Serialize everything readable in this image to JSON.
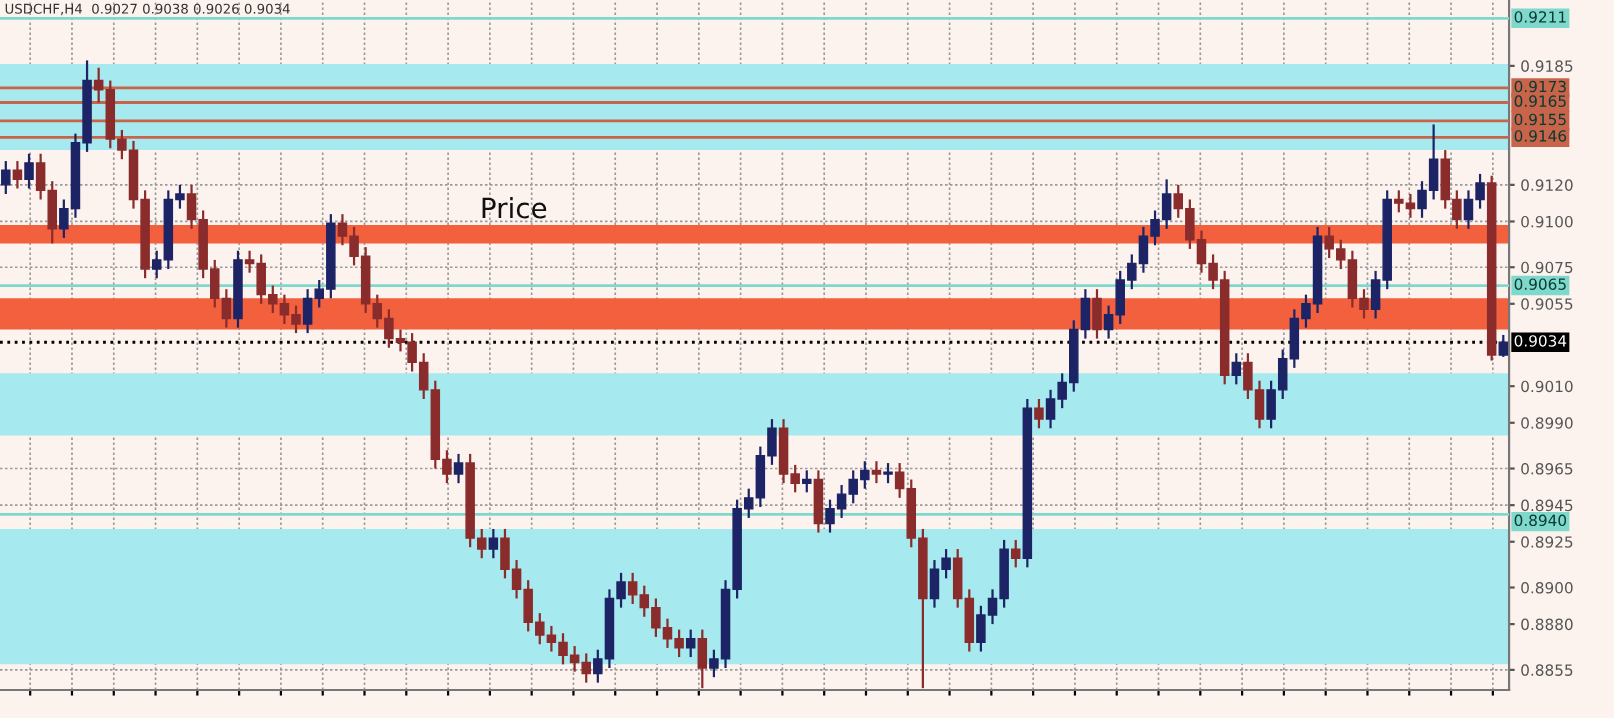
{
  "chart_data": {
    "type": "candlestick",
    "title": "USDCHF,H4  0.9027 0.9038 0.9026 0.9034",
    "annotations": [
      "Price"
    ],
    "colors": [
      "#1c2466",
      "#8a2c2c",
      "#1c2466",
      "#8a2c2c",
      "#8a2c2c",
      "#1c2466",
      "#1c2466",
      "#1c2466",
      "#8a2c2c",
      "#8a2c2c",
      "#8a2c2c",
      "#8a2c2c",
      "#8a2c2c",
      "#1c2466",
      "#1c2466",
      "#1c2466",
      "#8a2c2c",
      "#8a2c2c",
      "#8a2c2c",
      "#8a2c2c",
      "#1c2466",
      "#8a2c2c",
      "#8a2c2c",
      "#8a2c2c",
      "#8a2c2c",
      "#8a2c2c",
      "#1c2466",
      "#1c2466",
      "#1c2466",
      "#8a2c2c",
      "#8a2c2c",
      "#8a2c2c",
      "#8a2c2c",
      "#8a2c2c",
      "#8a2c2c",
      "#8a2c2c",
      "#8a2c2c",
      "#8a2c2c",
      "#8a2c2c",
      "#1c2466",
      "#8a2c2c",
      "#8a2c2c",
      "#1c2466",
      "#8a2c2c",
      "#8a2c2c",
      "#8a2c2c",
      "#8a2c2c",
      "#8a2c2c",
      "#8a2c2c",
      "#8a2c2c",
      "#8a2c2c",
      "#1c2466",
      "#1c2466",
      "#1c2466",
      "#8a2c2c",
      "#8a2c2c",
      "#8a2c2c",
      "#8a2c2c",
      "#8a2c2c",
      "#1c2466",
      "#8a2c2c",
      "#1c2466",
      "#1c2466",
      "#1c2466",
      "#1c2466",
      "#1c2466",
      "#1c2466",
      "#8a2c2c",
      "#8a2c2c",
      "#1c2466",
      "#8a2c2c",
      "#1c2466",
      "#1c2466",
      "#1c2466",
      "#1c2466",
      "#8a2c2c",
      "#1c2466",
      "#8a2c2c",
      "#8a2c2c",
      "#8a2c2c",
      "#1c2466",
      "#1c2466",
      "#8a2c2c",
      "#8a2c2c",
      "#1c2466",
      "#1c2466",
      "#1c2466",
      "#8a2c2c",
      "#1c2466",
      "#8a2c2c",
      "#1c2466",
      "#1c2466",
      "#1c2466",
      "#1c2466",
      "#8a2c2c",
      "#1c2466",
      "#1c2466",
      "#1c2466",
      "#1c2466",
      "#1c2466",
      "#1c2466",
      "#8a2c2c",
      "#8a2c2c",
      "#8a2c2c",
      "#8a2c2c",
      "#8a2c2c",
      "#1c2466",
      "#8a2c2c",
      "#8a2c2c",
      "#1c2466",
      "#1c2466",
      "#1c2466",
      "#1c2466",
      "#1c2466",
      "#8a2c2c",
      "#8a2c2c",
      "#8a2c2c",
      "#8a2c2c",
      "#1c2466",
      "#1c2466",
      "#8a2c2c",
      "#8a2c2c",
      "#1c2466",
      "#1c2466",
      "#8a2c2c",
      "#8a2c2c",
      "#1c2466",
      "#1c2466",
      "#8a2c2c",
      "#1c2466"
    ],
    "categories": [
      null,
      null,
      null,
      null,
      null,
      null,
      null,
      null,
      null,
      null,
      null,
      null,
      null,
      null,
      null,
      null,
      null,
      null,
      null,
      null,
      null,
      null,
      null,
      null,
      null,
      null,
      null,
      null,
      null,
      null,
      null,
      null,
      null,
      null,
      null,
      null,
      null,
      null,
      null,
      null,
      null,
      null,
      null,
      null,
      null,
      null,
      null,
      null,
      null,
      null,
      null,
      null,
      null,
      null,
      null,
      null,
      null,
      null,
      null,
      null,
      null,
      null,
      null,
      null,
      null,
      null,
      null,
      null,
      null,
      null,
      null,
      null,
      null,
      null,
      null,
      null,
      null,
      null,
      null,
      null,
      null,
      null,
      null,
      null,
      null,
      null,
      null,
      null,
      null,
      null,
      null,
      null,
      null,
      null,
      null,
      null,
      null,
      null,
      null,
      null,
      null,
      null,
      null,
      null,
      null,
      null,
      null,
      null,
      null,
      null,
      null,
      null,
      null,
      null,
      null,
      null,
      null,
      null,
      null,
      null,
      null,
      null,
      null,
      null,
      null,
      null,
      null,
      null,
      null,
      null
    ],
    "ohlc": [
      [
        0.912,
        0.9133,
        0.9115,
        0.9128
      ],
      [
        0.9128,
        0.9133,
        0.9118,
        0.9123
      ],
      [
        0.9123,
        0.9137,
        0.9118,
        0.9132
      ],
      [
        0.9132,
        0.9137,
        0.9112,
        0.9117
      ],
      [
        0.9117,
        0.9122,
        0.9088,
        0.9096
      ],
      [
        0.9096,
        0.9112,
        0.9091,
        0.9107
      ],
      [
        0.9107,
        0.9148,
        0.9102,
        0.9143
      ],
      [
        0.9143,
        0.9188,
        0.9138,
        0.9177
      ],
      [
        0.9177,
        0.9184,
        0.9165,
        0.9172
      ],
      [
        0.9172,
        0.9177,
        0.914,
        0.9145
      ],
      [
        0.9145,
        0.915,
        0.9134,
        0.9139
      ],
      [
        0.9139,
        0.9144,
        0.9107,
        0.9112
      ],
      [
        0.9112,
        0.9117,
        0.9069,
        0.9074
      ],
      [
        0.9074,
        0.9084,
        0.9069,
        0.9079
      ],
      [
        0.9079,
        0.9117,
        0.9074,
        0.9112
      ],
      [
        0.9112,
        0.912,
        0.9107,
        0.9115
      ],
      [
        0.9115,
        0.912,
        0.9096,
        0.9101
      ],
      [
        0.9101,
        0.9106,
        0.9069,
        0.9074
      ],
      [
        0.9074,
        0.9079,
        0.9053,
        0.9058
      ],
      [
        0.9058,
        0.9063,
        0.9042,
        0.9047
      ],
      [
        0.9047,
        0.9084,
        0.9042,
        0.9079
      ],
      [
        0.9079,
        0.9084,
        0.9072,
        0.9077
      ],
      [
        0.9077,
        0.9082,
        0.9055,
        0.906
      ],
      [
        0.906,
        0.9065,
        0.905,
        0.9055
      ],
      [
        0.9055,
        0.906,
        0.9044,
        0.9049
      ],
      [
        0.9049,
        0.9054,
        0.9039,
        0.9044
      ],
      [
        0.9044,
        0.9063,
        0.9039,
        0.9058
      ],
      [
        0.9058,
        0.9068,
        0.9053,
        0.9063
      ],
      [
        0.9063,
        0.9104,
        0.9058,
        0.9099
      ],
      [
        0.9099,
        0.9104,
        0.9087,
        0.9092
      ],
      [
        0.9092,
        0.9097,
        0.9076,
        0.9081
      ],
      [
        0.9081,
        0.9086,
        0.905,
        0.9055
      ],
      [
        0.9055,
        0.906,
        0.9042,
        0.9047
      ],
      [
        0.9047,
        0.9052,
        0.9031,
        0.9036
      ],
      [
        0.9036,
        0.9041,
        0.9029,
        0.9034
      ],
      [
        0.9034,
        0.9039,
        0.9018,
        0.9023
      ],
      [
        0.9023,
        0.9028,
        0.9003,
        0.9008
      ],
      [
        0.9008,
        0.9013,
        0.8965,
        0.897
      ],
      [
        0.897,
        0.8975,
        0.8957,
        0.8962
      ],
      [
        0.8962,
        0.8973,
        0.8957,
        0.8968
      ],
      [
        0.8968,
        0.8973,
        0.8922,
        0.8927
      ],
      [
        0.8927,
        0.8932,
        0.8916,
        0.8921
      ],
      [
        0.8921,
        0.8932,
        0.8916,
        0.8927
      ],
      [
        0.8927,
        0.8932,
        0.8905,
        0.891
      ],
      [
        0.891,
        0.8915,
        0.8894,
        0.8899
      ],
      [
        0.8899,
        0.8904,
        0.8876,
        0.8881
      ],
      [
        0.8881,
        0.8886,
        0.8869,
        0.8874
      ],
      [
        0.8874,
        0.8879,
        0.8865,
        0.887
      ],
      [
        0.887,
        0.8875,
        0.8858,
        0.8863
      ],
      [
        0.8863,
        0.8868,
        0.8854,
        0.8859
      ],
      [
        0.8859,
        0.8864,
        0.8848,
        0.8853
      ],
      [
        0.8853,
        0.8866,
        0.8848,
        0.8861
      ],
      [
        0.8861,
        0.8899,
        0.8856,
        0.8894
      ],
      [
        0.8894,
        0.8908,
        0.8889,
        0.8903
      ],
      [
        0.8903,
        0.8908,
        0.8891,
        0.8896
      ],
      [
        0.8896,
        0.8901,
        0.8884,
        0.8889
      ],
      [
        0.8889,
        0.8894,
        0.8873,
        0.8878
      ],
      [
        0.8878,
        0.8883,
        0.8867,
        0.8872
      ],
      [
        0.8872,
        0.8877,
        0.8862,
        0.8867
      ],
      [
        0.8867,
        0.8877,
        0.8862,
        0.8872
      ],
      [
        0.8872,
        0.8877,
        0.8845,
        0.8856
      ],
      [
        0.8856,
        0.8866,
        0.8851,
        0.8861
      ],
      [
        0.8861,
        0.8904,
        0.8856,
        0.8899
      ],
      [
        0.8899,
        0.8948,
        0.8894,
        0.8943
      ],
      [
        0.8943,
        0.8954,
        0.8938,
        0.8949
      ],
      [
        0.8949,
        0.8977,
        0.8944,
        0.8972
      ],
      [
        0.8972,
        0.8992,
        0.8967,
        0.8987
      ],
      [
        0.8987,
        0.8992,
        0.8957,
        0.8962
      ],
      [
        0.8962,
        0.8967,
        0.8952,
        0.8957
      ],
      [
        0.8957,
        0.8964,
        0.8952,
        0.8959
      ],
      [
        0.8959,
        0.8964,
        0.893,
        0.8935
      ],
      [
        0.8935,
        0.8948,
        0.893,
        0.8943
      ],
      [
        0.8943,
        0.8956,
        0.8938,
        0.8951
      ],
      [
        0.8951,
        0.8964,
        0.8946,
        0.8959
      ],
      [
        0.8959,
        0.8969,
        0.8954,
        0.8964
      ],
      [
        0.8964,
        0.8969,
        0.8957,
        0.8962
      ],
      [
        0.8962,
        0.8968,
        0.8957,
        0.8963
      ],
      [
        0.8963,
        0.8968,
        0.8949,
        0.8954
      ],
      [
        0.8954,
        0.8959,
        0.8922,
        0.8927
      ],
      [
        0.8927,
        0.8932,
        0.8845,
        0.8894
      ],
      [
        0.8894,
        0.8915,
        0.8889,
        0.891
      ],
      [
        0.891,
        0.8921,
        0.8905,
        0.8916
      ],
      [
        0.8916,
        0.8921,
        0.8889,
        0.8894
      ],
      [
        0.8894,
        0.8899,
        0.8865,
        0.887
      ],
      [
        0.887,
        0.889,
        0.8865,
        0.8885
      ],
      [
        0.8885,
        0.8899,
        0.888,
        0.8894
      ],
      [
        0.8894,
        0.8926,
        0.8889,
        0.8921
      ],
      [
        0.8921,
        0.8926,
        0.8911,
        0.8916
      ],
      [
        0.8916,
        0.9003,
        0.8911,
        0.8998
      ],
      [
        0.8998,
        0.9003,
        0.8987,
        0.8992
      ],
      [
        0.8992,
        0.9008,
        0.8987,
        0.9003
      ],
      [
        0.9003,
        0.9017,
        0.8998,
        0.9012
      ],
      [
        0.9012,
        0.9046,
        0.9007,
        0.9041
      ],
      [
        0.9041,
        0.9063,
        0.9036,
        0.9058
      ],
      [
        0.9058,
        0.9063,
        0.9036,
        0.9041
      ],
      [
        0.9041,
        0.9054,
        0.9036,
        0.9049
      ],
      [
        0.9049,
        0.9073,
        0.9044,
        0.9068
      ],
      [
        0.9068,
        0.9082,
        0.9063,
        0.9077
      ],
      [
        0.9077,
        0.9097,
        0.9072,
        0.9092
      ],
      [
        0.9092,
        0.9106,
        0.9087,
        0.9101
      ],
      [
        0.9101,
        0.9123,
        0.9096,
        0.9115
      ],
      [
        0.9115,
        0.912,
        0.9102,
        0.9107
      ],
      [
        0.9107,
        0.9112,
        0.9085,
        0.909
      ],
      [
        0.909,
        0.9095,
        0.9072,
        0.9077
      ],
      [
        0.9077,
        0.9082,
        0.9063,
        0.9068
      ],
      [
        0.9068,
        0.9073,
        0.9011,
        0.9016
      ],
      [
        0.9016,
        0.9028,
        0.9011,
        0.9023
      ],
      [
        0.9023,
        0.9028,
        0.9003,
        0.9008
      ],
      [
        0.9008,
        0.9013,
        0.8987,
        0.8992
      ],
      [
        0.8992,
        0.9013,
        0.8987,
        0.9008
      ],
      [
        0.9008,
        0.903,
        0.9003,
        0.9025
      ],
      [
        0.9025,
        0.9052,
        0.902,
        0.9047
      ],
      [
        0.9047,
        0.906,
        0.9042,
        0.9055
      ],
      [
        0.9055,
        0.9097,
        0.905,
        0.9092
      ],
      [
        0.9092,
        0.9097,
        0.908,
        0.9085
      ],
      [
        0.9085,
        0.909,
        0.9074,
        0.9079
      ],
      [
        0.9079,
        0.9084,
        0.9053,
        0.9058
      ],
      [
        0.9058,
        0.9063,
        0.9047,
        0.9052
      ],
      [
        0.9052,
        0.9073,
        0.9047,
        0.9068
      ],
      [
        0.9068,
        0.9117,
        0.9063,
        0.9112
      ],
      [
        0.9112,
        0.9117,
        0.9105,
        0.911
      ],
      [
        0.911,
        0.9115,
        0.9102,
        0.9107
      ],
      [
        0.9107,
        0.9122,
        0.9102,
        0.9117
      ],
      [
        0.9117,
        0.9153,
        0.9112,
        0.9134
      ],
      [
        0.9134,
        0.9139,
        0.9107,
        0.9112
      ],
      [
        0.9112,
        0.9117,
        0.9096,
        0.9101
      ],
      [
        0.9101,
        0.9117,
        0.9096,
        0.9112
      ],
      [
        0.9112,
        0.9126,
        0.9107,
        0.9121
      ],
      [
        0.9121,
        0.9125,
        0.9024,
        0.9027
      ],
      [
        0.9027,
        0.9038,
        0.9026,
        0.9034
      ]
    ],
    "ylim": [
      0.8844,
      0.9221
    ],
    "yticks": [
      {
        "value": 0.9185,
        "label": "0.9185"
      },
      {
        "value": 0.912,
        "label": "0.9120"
      },
      {
        "value": 0.91,
        "label": "0.9100"
      },
      {
        "value": 0.9075,
        "label": "0.9075"
      },
      {
        "value": 0.9055,
        "label": "0.9055"
      },
      {
        "value": 0.901,
        "label": "0.9010"
      },
      {
        "value": 0.899,
        "label": "0.8990"
      },
      {
        "value": 0.8965,
        "label": "0.8965"
      },
      {
        "value": 0.8945,
        "label": "0.8945"
      },
      {
        "value": 0.8925,
        "label": "0.8925"
      },
      {
        "value": 0.89,
        "label": "0.8900"
      },
      {
        "value": 0.888,
        "label": "0.8880"
      },
      {
        "value": 0.8855,
        "label": "0.8855"
      }
    ],
    "tick_labels": "y",
    "grid": "y",
    "ref_lines": [
      {
        "axis": "y",
        "value": 0.9211,
        "label": "0.9211",
        "color": "#7fd8cc"
      },
      {
        "axis": "y",
        "value": 0.9173,
        "label": "0.9173",
        "color": "#c8644a"
      },
      {
        "axis": "y",
        "value": 0.9165,
        "label": "0.9165",
        "color": "#c8644a"
      },
      {
        "axis": "y",
        "value": 0.9155,
        "label": "0.9155",
        "color": "#c8644a"
      },
      {
        "axis": "y",
        "value": 0.9146,
        "label": "0.9146",
        "color": "#c8644a"
      },
      {
        "axis": "y",
        "value": 0.9065,
        "label": "0.9065",
        "color": "#7fd8cc"
      },
      {
        "axis": "y",
        "value": 0.9034,
        "label": "0.9034",
        "color": "#000000",
        "line_style": "dotted"
      },
      {
        "axis": "y",
        "value": 0.894,
        "label": "0.8940",
        "color": "#7fd8cc"
      }
    ],
    "bands": [
      {
        "axis": "y",
        "from": 0.9139,
        "to": 0.9186,
        "color": "#a6e9ef"
      },
      {
        "axis": "y",
        "from": 0.8983,
        "to": 0.9017,
        "color": "#a6e9ef"
      },
      {
        "axis": "y",
        "from": 0.8858,
        "to": 0.8932,
        "color": "#a6e9ef"
      },
      {
        "axis": "y",
        "from": 0.9088,
        "to": 0.9098,
        "color": "#f2603e"
      },
      {
        "axis": "y",
        "from": 0.9041,
        "to": 0.9058,
        "color": "#f2603e"
      }
    ]
  }
}
